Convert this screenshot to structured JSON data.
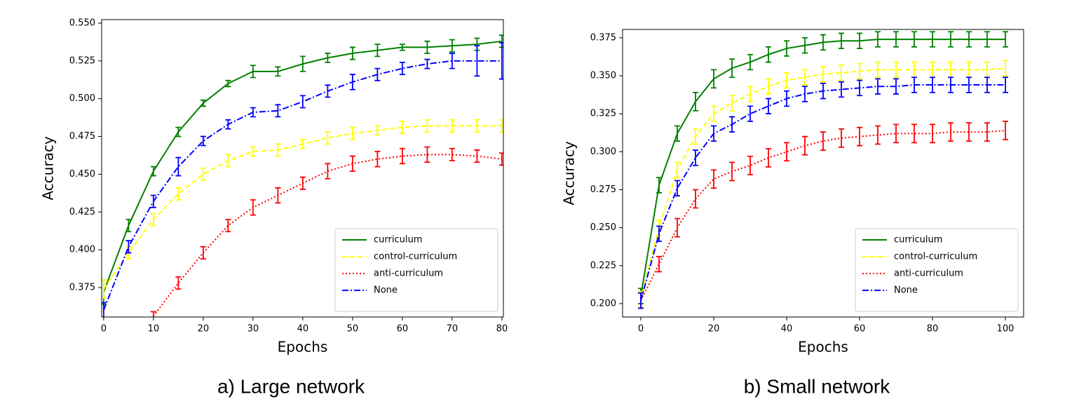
{
  "chart_data": [
    {
      "type": "line",
      "caption": "a) Large network",
      "xlabel": "Epochs",
      "ylabel": "Accuracy",
      "x": [
        0,
        5,
        10,
        15,
        20,
        25,
        30,
        35,
        40,
        45,
        50,
        55,
        60,
        65,
        70,
        75,
        80
      ],
      "xlim": [
        -0.4,
        80.3
      ],
      "ylim": [
        0.3555,
        0.5523
      ],
      "xticks": [
        0,
        10,
        20,
        30,
        40,
        50,
        60,
        70,
        80
      ],
      "yticks": [
        0.375,
        {
          "value": 0.4,
          "label": "0.400"
        },
        0.425,
        {
          "value": 0.45,
          "label": "0.450"
        },
        0.475,
        {
          "value": 0.5,
          "label": "0.500"
        },
        0.525,
        {
          "value": 0.55,
          "label": "0.550"
        }
      ],
      "legend": "lower right",
      "series": [
        {
          "name": "curriculum",
          "color": "#008000",
          "dash": "solid",
          "values": [
            0.372,
            0.416,
            0.452,
            0.478,
            0.497,
            0.51,
            0.518,
            0.518,
            0.523,
            0.527,
            0.53,
            0.532,
            0.534,
            0.534,
            0.535,
            0.536,
            0.538
          ],
          "errors": [
            0.008,
            0.004,
            0.003,
            0.003,
            0.002,
            0.002,
            0.004,
            0.003,
            0.005,
            0.003,
            0.004,
            0.004,
            0.002,
            0.004,
            0.004,
            0.004,
            0.004
          ]
        },
        {
          "name": "control-curriculum",
          "color": "#ffff00",
          "dash": "dashed",
          "values": [
            0.374,
            0.398,
            0.42,
            0.437,
            0.45,
            0.459,
            0.465,
            0.466,
            0.47,
            0.474,
            0.477,
            0.479,
            0.481,
            0.482,
            0.482,
            0.482,
            0.482
          ],
          "errors": [
            0.006,
            0.004,
            0.004,
            0.004,
            0.004,
            0.004,
            0.003,
            0.004,
            0.003,
            0.004,
            0.004,
            0.003,
            0.004,
            0.004,
            0.004,
            0.004,
            0.004
          ]
        },
        {
          "name": "anti-curriculum",
          "color": "#ff0000",
          "dash": "dotted",
          "values": [
            null,
            null,
            0.356,
            0.378,
            0.398,
            0.416,
            0.428,
            0.436,
            0.444,
            0.452,
            0.457,
            0.46,
            0.462,
            0.463,
            0.463,
            0.462,
            0.46
          ],
          "errors": [
            null,
            null,
            0.003,
            0.004,
            0.004,
            0.004,
            0.005,
            0.005,
            0.004,
            0.005,
            0.005,
            0.005,
            0.005,
            0.005,
            0.004,
            0.004,
            0.004
          ]
        },
        {
          "name": "None",
          "color": "#0000ff",
          "dash": "dashdot",
          "values": [
            0.36,
            0.402,
            0.432,
            0.455,
            0.472,
            0.483,
            0.491,
            0.492,
            0.498,
            0.505,
            0.511,
            0.516,
            0.52,
            0.523,
            0.525,
            0.525,
            0.525
          ],
          "errors": [
            0.005,
            0.004,
            0.004,
            0.006,
            0.003,
            0.003,
            0.003,
            0.004,
            0.004,
            0.004,
            0.005,
            0.004,
            0.004,
            0.003,
            0.005,
            0.01,
            0.012
          ]
        }
      ]
    },
    {
      "type": "line",
      "caption": "b) Small network",
      "xlabel": "Epochs",
      "ylabel": "Accuracy",
      "x": [
        0,
        5,
        10,
        15,
        20,
        25,
        30,
        35,
        40,
        45,
        50,
        55,
        60,
        65,
        70,
        75,
        80,
        85,
        90,
        95,
        100
      ],
      "xlim": [
        -5,
        105
      ],
      "ylim": [
        0.1912,
        0.3805
      ],
      "xticks": [
        0,
        20,
        40,
        60,
        80,
        100
      ],
      "yticks": [
        {
          "value": 0.2,
          "label": "0.200"
        },
        0.225,
        {
          "value": 0.25,
          "label": "0.250"
        },
        0.275,
        {
          "value": 0.3,
          "label": "0.300"
        },
        0.325,
        {
          "value": 0.35,
          "label": "0.350"
        },
        0.375
      ],
      "legend": "lower right",
      "series": [
        {
          "name": "curriculum",
          "color": "#008000",
          "dash": "solid",
          "values": [
            0.205,
            0.278,
            0.312,
            0.333,
            0.348,
            0.355,
            0.359,
            0.364,
            0.368,
            0.37,
            0.372,
            0.373,
            0.373,
            0.374,
            0.374,
            0.374,
            0.374,
            0.374,
            0.374,
            0.374,
            0.374
          ],
          "errors": [
            0.005,
            0.005,
            0.005,
            0.006,
            0.006,
            0.006,
            0.005,
            0.005,
            0.005,
            0.005,
            0.005,
            0.005,
            0.005,
            0.005,
            0.005,
            0.005,
            0.005,
            0.005,
            0.005,
            0.005,
            0.005
          ]
        },
        {
          "name": "control-curriculum",
          "color": "#ffff00",
          "dash": "dashed",
          "values": [
            0.203,
            0.25,
            0.288,
            0.31,
            0.325,
            0.332,
            0.338,
            0.343,
            0.347,
            0.349,
            0.351,
            0.352,
            0.353,
            0.354,
            0.354,
            0.354,
            0.354,
            0.354,
            0.354,
            0.354,
            0.355
          ],
          "errors": [
            0.005,
            0.005,
            0.005,
            0.005,
            0.005,
            0.005,
            0.005,
            0.005,
            0.005,
            0.005,
            0.005,
            0.005,
            0.005,
            0.005,
            0.005,
            0.005,
            0.005,
            0.005,
            0.005,
            0.005,
            0.005
          ]
        },
        {
          "name": "anti-curriculum",
          "color": "#ff0000",
          "dash": "dotted",
          "values": [
            0.202,
            0.226,
            0.25,
            0.269,
            0.282,
            0.287,
            0.291,
            0.296,
            0.3,
            0.304,
            0.307,
            0.309,
            0.31,
            0.311,
            0.312,
            0.312,
            0.312,
            0.313,
            0.313,
            0.313,
            0.314
          ],
          "errors": [
            0.005,
            0.005,
            0.006,
            0.006,
            0.006,
            0.006,
            0.006,
            0.006,
            0.006,
            0.006,
            0.006,
            0.006,
            0.006,
            0.006,
            0.006,
            0.006,
            0.006,
            0.006,
            0.006,
            0.006,
            0.006
          ]
        },
        {
          "name": "None",
          "color": "#0000ff",
          "dash": "dashdot",
          "values": [
            0.202,
            0.246,
            0.276,
            0.296,
            0.312,
            0.318,
            0.325,
            0.33,
            0.335,
            0.338,
            0.34,
            0.341,
            0.342,
            0.343,
            0.343,
            0.344,
            0.344,
            0.344,
            0.344,
            0.344,
            0.344
          ],
          "errors": [
            0.005,
            0.005,
            0.005,
            0.005,
            0.005,
            0.005,
            0.005,
            0.005,
            0.005,
            0.005,
            0.005,
            0.005,
            0.005,
            0.005,
            0.005,
            0.005,
            0.005,
            0.005,
            0.005,
            0.005,
            0.005
          ]
        }
      ]
    }
  ]
}
